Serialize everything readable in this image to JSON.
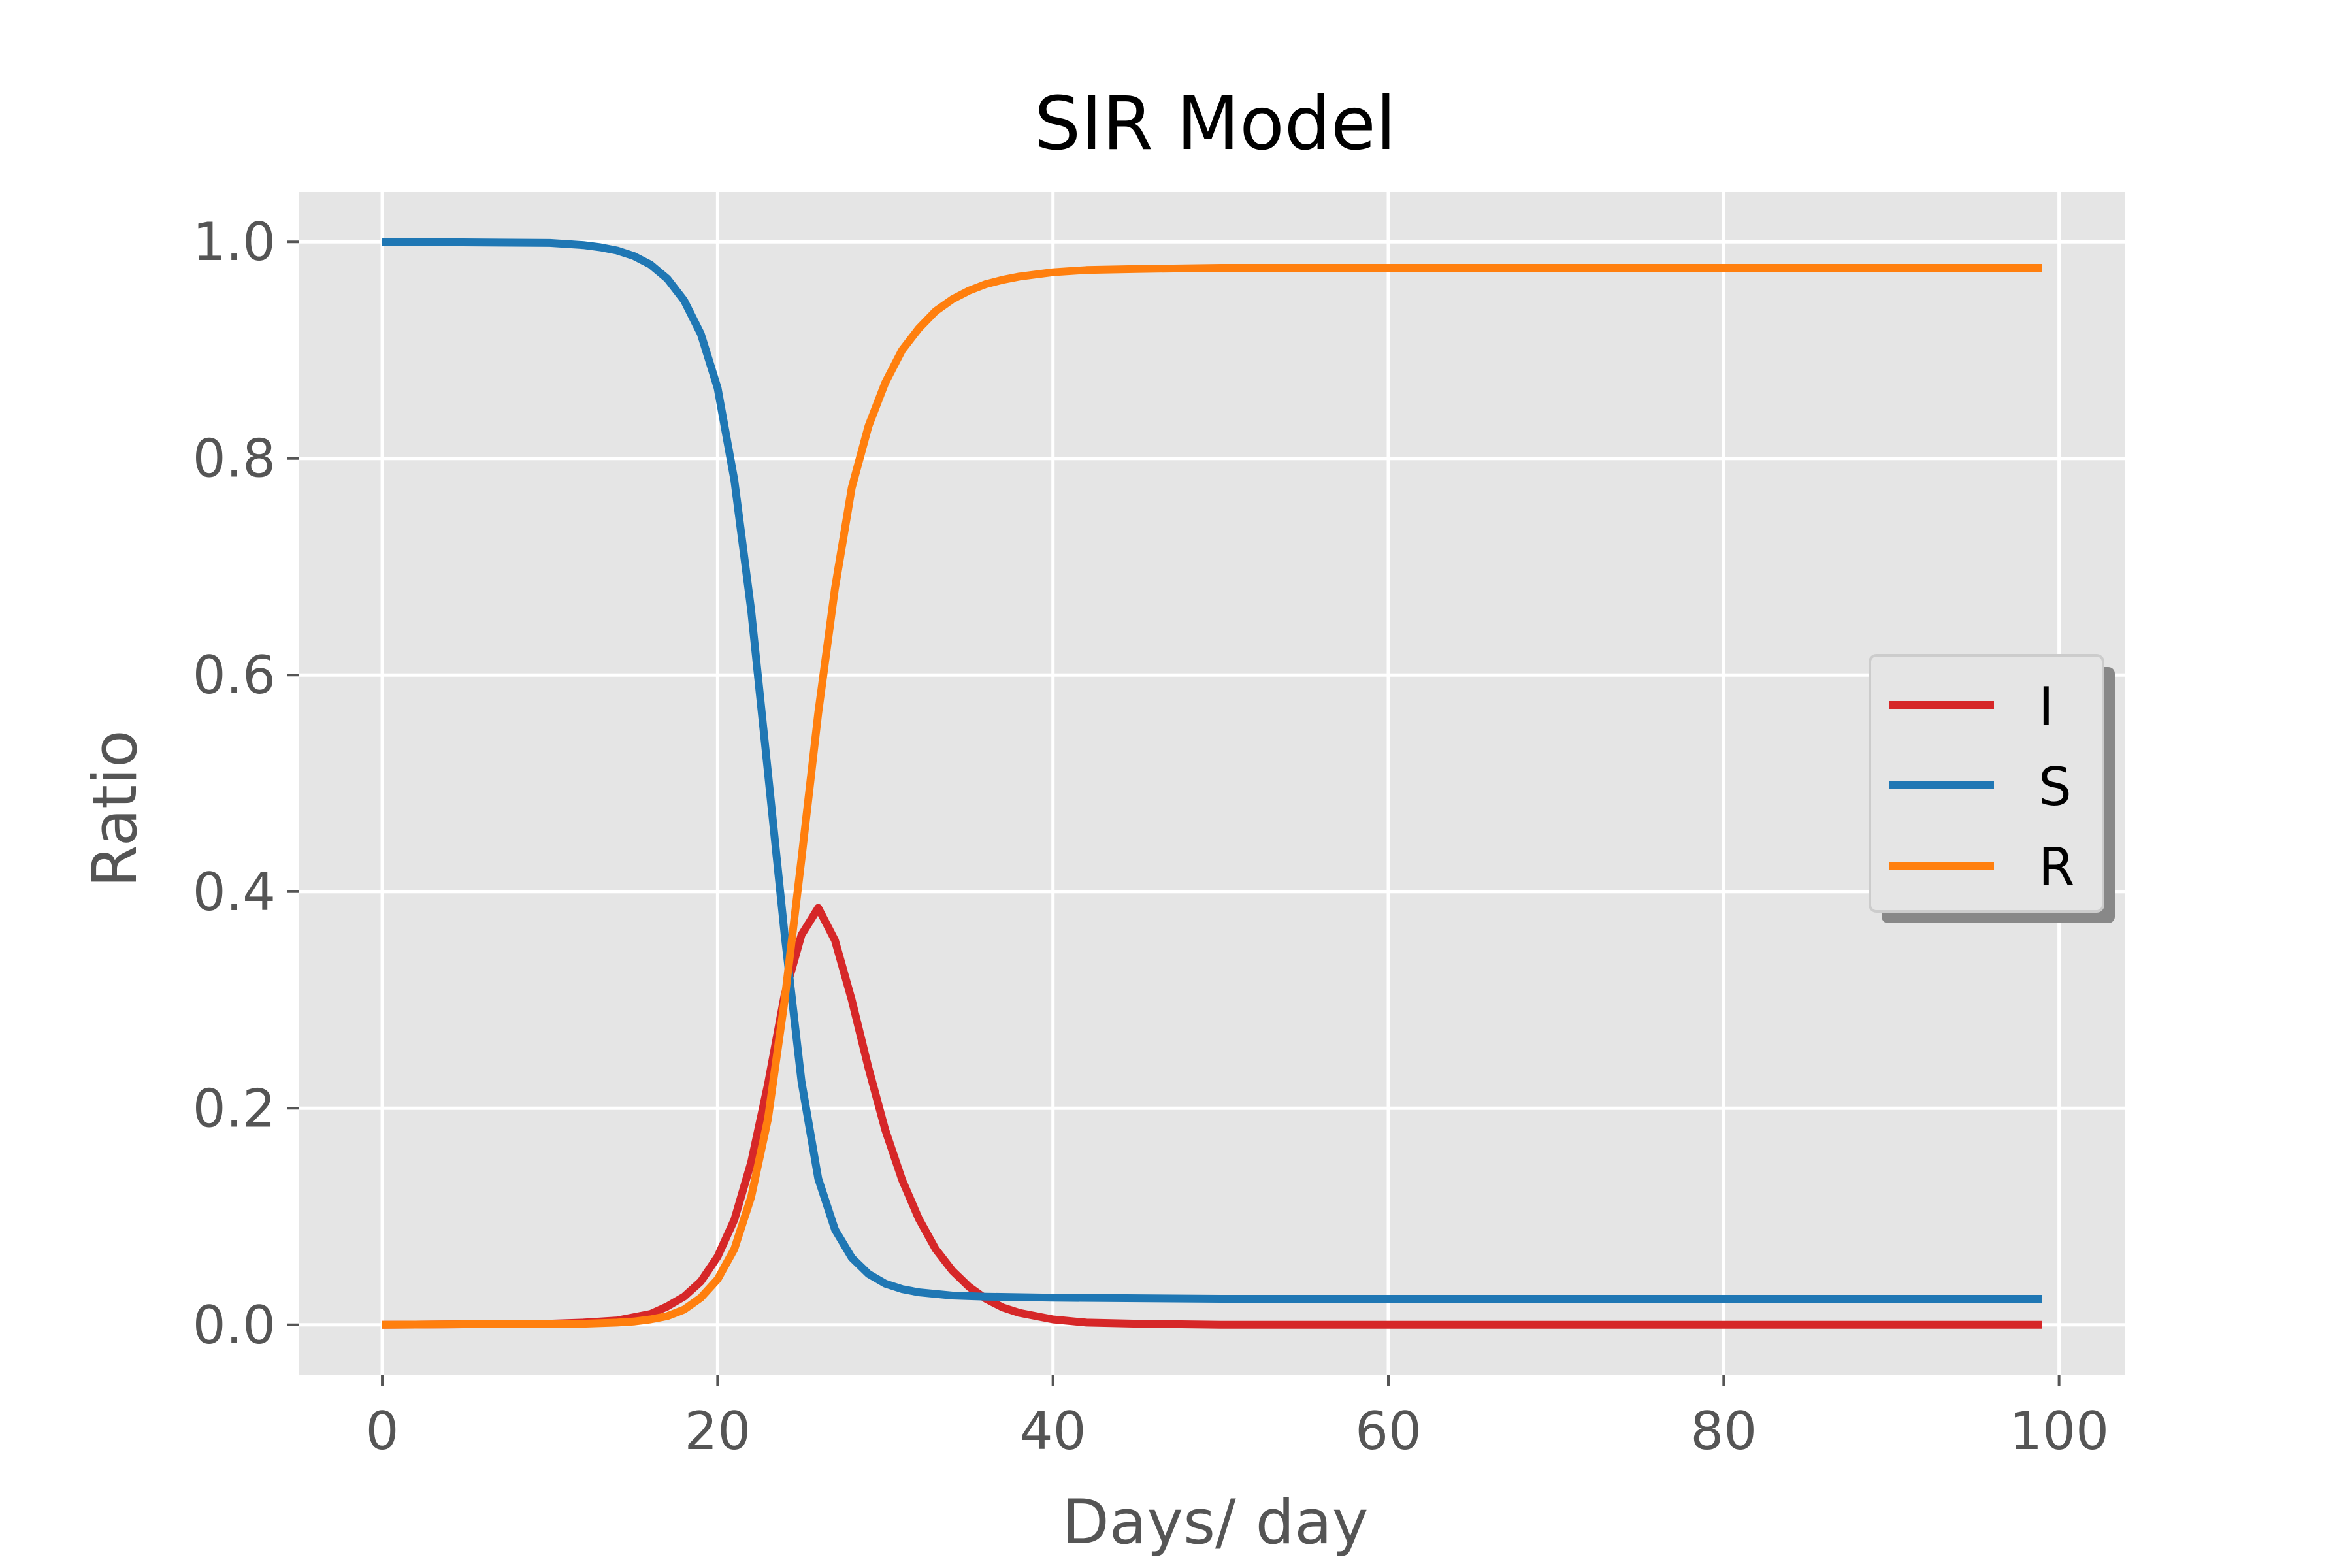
{
  "chart_data": {
    "type": "line",
    "title": "SIR Model",
    "xlabel": "Days/ day",
    "ylabel": "Ratio",
    "xlim": [
      -4.95,
      103.95
    ],
    "ylim": [
      -0.046,
      1.046
    ],
    "xticks": [
      0,
      20,
      40,
      60,
      80,
      100
    ],
    "xtick_labels": [
      "0",
      "20",
      "40",
      "60",
      "80",
      "100"
    ],
    "yticks": [
      0.0,
      0.2,
      0.4,
      0.6,
      0.8,
      1.0
    ],
    "ytick_labels": [
      "0.0",
      "0.2",
      "0.4",
      "0.6",
      "0.8",
      "1.0"
    ],
    "grid": true,
    "legend": "center-right",
    "background_color": "#e5e5e5",
    "grid_color": "#ffffff",
    "series": [
      {
        "name": "I",
        "color": "#d62728",
        "points": [
          [
            0,
            0.0
          ],
          [
            10,
            0.001
          ],
          [
            12,
            0.002
          ],
          [
            14,
            0.004
          ],
          [
            15,
            0.007
          ],
          [
            16,
            0.01
          ],
          [
            17,
            0.017
          ],
          [
            18,
            0.026
          ],
          [
            19,
            0.04
          ],
          [
            20,
            0.063
          ],
          [
            21,
            0.097
          ],
          [
            22,
            0.15
          ],
          [
            23,
            0.222
          ],
          [
            24,
            0.305
          ],
          [
            25,
            0.36
          ],
          [
            26,
            0.385
          ],
          [
            27,
            0.355
          ],
          [
            28,
            0.3
          ],
          [
            29,
            0.237
          ],
          [
            30,
            0.18
          ],
          [
            31,
            0.134
          ],
          [
            32,
            0.098
          ],
          [
            33,
            0.07
          ],
          [
            34,
            0.05
          ],
          [
            35,
            0.035
          ],
          [
            36,
            0.024
          ],
          [
            37,
            0.016
          ],
          [
            38,
            0.011
          ],
          [
            40,
            0.005
          ],
          [
            42,
            0.002
          ],
          [
            45,
            0.001
          ],
          [
            50,
            0.0
          ],
          [
            99,
            0.0
          ]
        ]
      },
      {
        "name": "S",
        "color": "#1f77b4",
        "points": [
          [
            0,
            1.0
          ],
          [
            10,
            0.999
          ],
          [
            12,
            0.997
          ],
          [
            13,
            0.995
          ],
          [
            14,
            0.992
          ],
          [
            15,
            0.987
          ],
          [
            16,
            0.979
          ],
          [
            17,
            0.966
          ],
          [
            18,
            0.946
          ],
          [
            19,
            0.915
          ],
          [
            20,
            0.865
          ],
          [
            21,
            0.78
          ],
          [
            22,
            0.66
          ],
          [
            23,
            0.51
          ],
          [
            24,
            0.36
          ],
          [
            25,
            0.225
          ],
          [
            26,
            0.135
          ],
          [
            27,
            0.088
          ],
          [
            28,
            0.062
          ],
          [
            29,
            0.047
          ],
          [
            30,
            0.038
          ],
          [
            31,
            0.033
          ],
          [
            32,
            0.03
          ],
          [
            34,
            0.027
          ],
          [
            36,
            0.026
          ],
          [
            40,
            0.025
          ],
          [
            50,
            0.024
          ],
          [
            99,
            0.024
          ]
        ]
      },
      {
        "name": "R",
        "color": "#ff7f0e",
        "points": [
          [
            0,
            0.0
          ],
          [
            10,
            0.001
          ],
          [
            12,
            0.001
          ],
          [
            14,
            0.002
          ],
          [
            15,
            0.003
          ],
          [
            16,
            0.005
          ],
          [
            17,
            0.008
          ],
          [
            18,
            0.014
          ],
          [
            19,
            0.025
          ],
          [
            20,
            0.042
          ],
          [
            21,
            0.07
          ],
          [
            22,
            0.118
          ],
          [
            23,
            0.19
          ],
          [
            24,
            0.3
          ],
          [
            25,
            0.43
          ],
          [
            26,
            0.565
          ],
          [
            27,
            0.68
          ],
          [
            28,
            0.773
          ],
          [
            29,
            0.83
          ],
          [
            30,
            0.87
          ],
          [
            31,
            0.9
          ],
          [
            32,
            0.92
          ],
          [
            33,
            0.936
          ],
          [
            34,
            0.947
          ],
          [
            35,
            0.955
          ],
          [
            36,
            0.961
          ],
          [
            37,
            0.965
          ],
          [
            38,
            0.968
          ],
          [
            40,
            0.972
          ],
          [
            42,
            0.974
          ],
          [
            45,
            0.975
          ],
          [
            50,
            0.976
          ],
          [
            99,
            0.976
          ]
        ]
      }
    ]
  }
}
